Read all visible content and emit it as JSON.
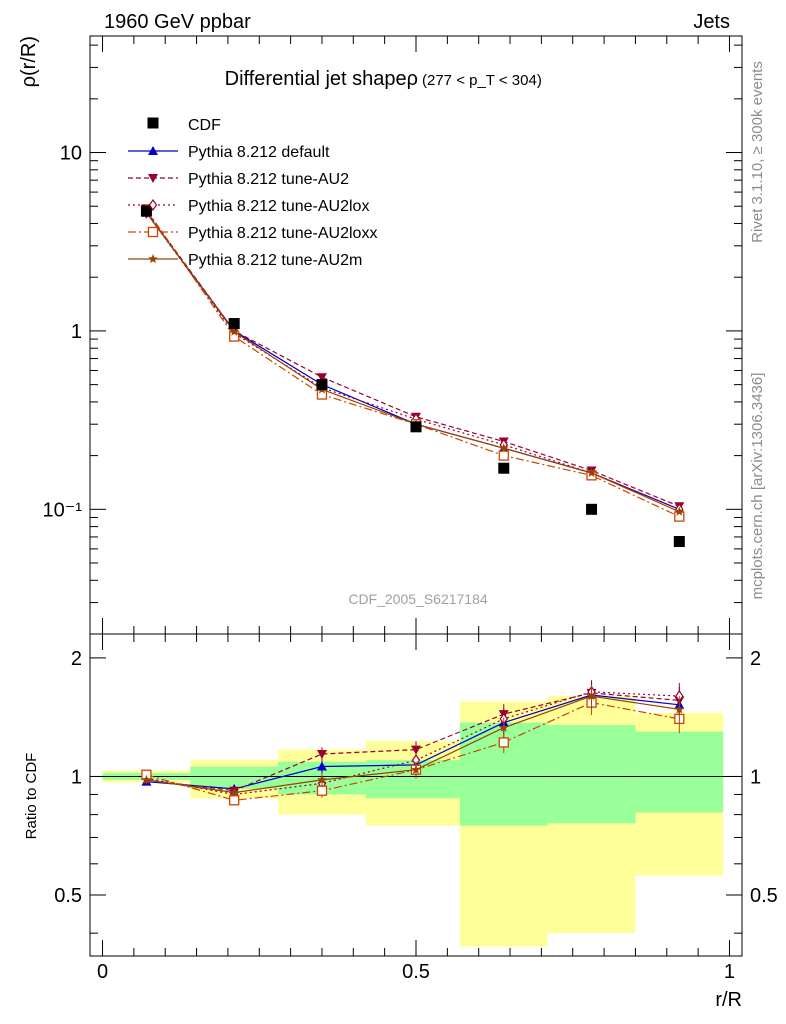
{
  "header": {
    "left": "1960 GeV ppbar",
    "right": "Jets",
    "side_top": "Rivet 3.1.10, ≥ 300k events",
    "side_bottom": "mcplots.cern.ch [arXiv:1306.3436]"
  },
  "chart_data": [
    {
      "type": "line",
      "id": "main",
      "scale": "log",
      "title": "Differential jet shapeρ",
      "title_range": "(277 < p_T < 304)",
      "ylabel": "ρ(r/R)",
      "ylim": [
        0.02,
        45
      ],
      "y_ticks": [
        {
          "v": 0.1,
          "label": "10⁻¹"
        },
        {
          "v": 1,
          "label": "1"
        },
        {
          "v": 10,
          "label": "10"
        }
      ],
      "watermark": "CDF_2005_S6217184",
      "x": [
        0.07,
        0.21,
        0.35,
        0.5,
        0.64,
        0.78,
        0.92
      ],
      "data": {
        "name": "CDF",
        "values": [
          4.7,
          1.1,
          0.5,
          0.29,
          0.17,
          0.1,
          0.066
        ]
      },
      "series": [
        {
          "name": "Pythia 8.212 default",
          "color": "#0000cc",
          "marker": "triangle-up",
          "dash": "",
          "values": [
            4.6,
            1.0,
            0.5,
            0.3,
            0.22,
            0.16,
            0.1
          ]
        },
        {
          "name": "Pythia 8.212 tune-AU2",
          "color": "#990033",
          "marker": "triangle-down",
          "dash": "5,3",
          "values": [
            4.7,
            1.0,
            0.55,
            0.33,
            0.24,
            0.165,
            0.104
          ]
        },
        {
          "name": "Pythia 8.212 tune-AU2lox",
          "color": "#990033",
          "marker": "diamond-open",
          "dash": "2,3",
          "values": [
            4.6,
            0.97,
            0.48,
            0.32,
            0.23,
            0.16,
            0.1
          ]
        },
        {
          "name": "Pythia 8.212 tune-AU2loxx",
          "color": "#cc4400",
          "marker": "square-open",
          "dash": "8,3,2,3",
          "values": [
            4.8,
            0.93,
            0.44,
            0.3,
            0.2,
            0.155,
            0.091
          ]
        },
        {
          "name": "Pythia 8.212 tune-AU2m",
          "color": "#994400",
          "marker": "star",
          "dash": "",
          "values": [
            4.6,
            0.99,
            0.47,
            0.3,
            0.22,
            0.16,
            0.097
          ]
        }
      ]
    },
    {
      "type": "line",
      "id": "ratio",
      "ylabel": "Ratio to CDF",
      "xlabel": "r/R",
      "ylim": [
        0.35,
        2.3
      ],
      "y_ticks": [
        {
          "v": 0.5,
          "label": "0.5"
        },
        {
          "v": 1,
          "label": "1"
        },
        {
          "v": 2,
          "label": "2"
        }
      ],
      "xlim": [
        -0.02,
        1.02
      ],
      "x_ticks": [
        {
          "v": 0,
          "label": "0"
        },
        {
          "v": 0.5,
          "label": "0.5"
        },
        {
          "v": 1,
          "label": "1"
        }
      ],
      "bins": [
        {
          "lo": 0.0,
          "hi": 0.14,
          "green": [
            0.98,
            1.02
          ],
          "yellow": [
            0.965,
            1.035
          ]
        },
        {
          "lo": 0.14,
          "hi": 0.28,
          "green": [
            0.93,
            1.06
          ],
          "yellow": [
            0.88,
            1.1
          ]
        },
        {
          "lo": 0.28,
          "hi": 0.42,
          "green": [
            0.9,
            1.09
          ],
          "yellow": [
            0.8,
            1.17
          ]
        },
        {
          "lo": 0.42,
          "hi": 0.57,
          "green": [
            0.88,
            1.1
          ],
          "yellow": [
            0.75,
            1.23
          ]
        },
        {
          "lo": 0.57,
          "hi": 0.71,
          "green": [
            0.75,
            1.37
          ],
          "yellow": [
            0.37,
            1.55
          ]
        },
        {
          "lo": 0.71,
          "hi": 0.85,
          "green": [
            0.76,
            1.35
          ],
          "yellow": [
            0.4,
            1.6
          ]
        },
        {
          "lo": 0.85,
          "hi": 0.99,
          "green": [
            0.81,
            1.3
          ],
          "yellow": [
            0.56,
            1.45
          ]
        }
      ],
      "series": [
        {
          "name": "Pythia 8.212 default",
          "values": [
            0.97,
            0.93,
            1.06,
            1.07,
            1.37,
            1.61,
            1.52
          ]
        },
        {
          "name": "Pythia 8.212 tune-AU2",
          "values": [
            0.98,
            0.92,
            1.14,
            1.17,
            1.44,
            1.63,
            1.56
          ]
        },
        {
          "name": "Pythia 8.212 tune-AU2lox",
          "values": [
            0.99,
            0.9,
            0.96,
            1.1,
            1.4,
            1.64,
            1.6
          ]
        },
        {
          "name": "Pythia 8.212 tune-AU2loxx",
          "values": [
            1.01,
            0.87,
            0.92,
            1.04,
            1.22,
            1.54,
            1.4
          ]
        },
        {
          "name": "Pythia 8.212 tune-AU2m",
          "values": [
            0.98,
            0.91,
            0.98,
            1.04,
            1.33,
            1.6,
            1.48
          ]
        }
      ],
      "errors": [
        0.02,
        0.02,
        0.04,
        0.05,
        0.06,
        0.07,
        0.08
      ]
    }
  ]
}
